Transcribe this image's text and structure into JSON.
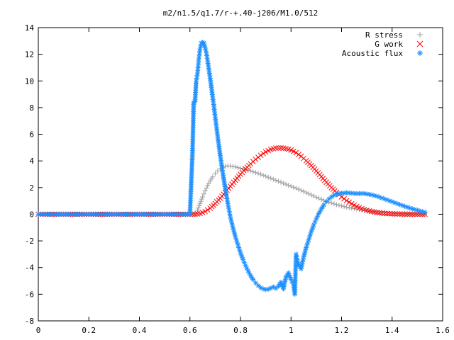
{
  "chart_data": {
    "type": "scatter",
    "title": "m2/n1.5/q1.7/r-+.40-j206/M1.0/512",
    "xlabel": "",
    "ylabel": "",
    "xlim": [
      0,
      1.6
    ],
    "ylim": [
      -8,
      14
    ],
    "x_ticks": [
      "0",
      "0.2",
      "0.4",
      "0.6",
      "0.8",
      "1",
      "1.2",
      "1.4",
      "1.6"
    ],
    "y_ticks": [
      "-8",
      "-6",
      "-4",
      "-2",
      "0",
      "2",
      "4",
      "6",
      "8",
      "10",
      "12",
      "14"
    ],
    "grid": false,
    "legend_position": "top-right",
    "series": [
      {
        "name": "R stress",
        "marker": "plus",
        "color": "#a0a0a0",
        "points": [
          [
            0.0,
            0
          ],
          [
            0.1,
            0
          ],
          [
            0.2,
            0
          ],
          [
            0.3,
            0
          ],
          [
            0.4,
            0
          ],
          [
            0.5,
            0
          ],
          [
            0.6,
            0
          ],
          [
            0.62,
            0.05
          ],
          [
            0.63,
            0.3
          ],
          [
            0.64,
            0.8
          ],
          [
            0.65,
            1.3
          ],
          [
            0.66,
            1.75
          ],
          [
            0.67,
            2.15
          ],
          [
            0.68,
            2.5
          ],
          [
            0.69,
            2.8
          ],
          [
            0.7,
            3.05
          ],
          [
            0.71,
            3.25
          ],
          [
            0.72,
            3.4
          ],
          [
            0.73,
            3.52
          ],
          [
            0.74,
            3.6
          ],
          [
            0.75,
            3.63
          ],
          [
            0.76,
            3.62
          ],
          [
            0.78,
            3.55
          ],
          [
            0.8,
            3.45
          ],
          [
            0.82,
            3.35
          ],
          [
            0.84,
            3.25
          ],
          [
            0.86,
            3.12
          ],
          [
            0.88,
            3.0
          ],
          [
            0.9,
            2.85
          ],
          [
            0.92,
            2.7
          ],
          [
            0.94,
            2.55
          ],
          [
            0.96,
            2.4
          ],
          [
            0.98,
            2.25
          ],
          [
            1.0,
            2.1
          ],
          [
            1.02,
            1.95
          ],
          [
            1.04,
            1.8
          ],
          [
            1.06,
            1.62
          ],
          [
            1.08,
            1.45
          ],
          [
            1.1,
            1.28
          ],
          [
            1.12,
            1.12
          ],
          [
            1.14,
            0.97
          ],
          [
            1.16,
            0.84
          ],
          [
            1.18,
            0.72
          ],
          [
            1.2,
            0.62
          ],
          [
            1.22,
            0.53
          ],
          [
            1.24,
            0.45
          ],
          [
            1.26,
            0.38
          ],
          [
            1.28,
            0.32
          ],
          [
            1.3,
            0.26
          ],
          [
            1.32,
            0.21
          ],
          [
            1.34,
            0.17
          ],
          [
            1.36,
            0.13
          ],
          [
            1.38,
            0.1
          ],
          [
            1.4,
            0.07
          ],
          [
            1.42,
            0.05
          ],
          [
            1.44,
            0.03
          ],
          [
            1.46,
            0.02
          ],
          [
            1.48,
            0.01
          ],
          [
            1.5,
            0.005
          ],
          [
            1.53,
            0.0
          ]
        ]
      },
      {
        "name": "G work",
        "marker": "cross",
        "color": "#ff0000",
        "points": [
          [
            0.0,
            0
          ],
          [
            0.1,
            0
          ],
          [
            0.2,
            0
          ],
          [
            0.3,
            0
          ],
          [
            0.4,
            0
          ],
          [
            0.5,
            0
          ],
          [
            0.6,
            0
          ],
          [
            0.62,
            0.0
          ],
          [
            0.64,
            0.05
          ],
          [
            0.66,
            0.2
          ],
          [
            0.68,
            0.45
          ],
          [
            0.7,
            0.8
          ],
          [
            0.72,
            1.2
          ],
          [
            0.74,
            1.65
          ],
          [
            0.76,
            2.1
          ],
          [
            0.78,
            2.55
          ],
          [
            0.8,
            3.0
          ],
          [
            0.82,
            3.4
          ],
          [
            0.84,
            3.78
          ],
          [
            0.86,
            4.12
          ],
          [
            0.88,
            4.42
          ],
          [
            0.9,
            4.68
          ],
          [
            0.92,
            4.86
          ],
          [
            0.94,
            4.96
          ],
          [
            0.96,
            4.98
          ],
          [
            0.98,
            4.93
          ],
          [
            1.0,
            4.82
          ],
          [
            1.02,
            4.62
          ],
          [
            1.04,
            4.35
          ],
          [
            1.06,
            4.02
          ],
          [
            1.08,
            3.65
          ],
          [
            1.1,
            3.25
          ],
          [
            1.12,
            2.82
          ],
          [
            1.14,
            2.4
          ],
          [
            1.16,
            2.0
          ],
          [
            1.18,
            1.64
          ],
          [
            1.2,
            1.3
          ],
          [
            1.22,
            1.02
          ],
          [
            1.24,
            0.78
          ],
          [
            1.26,
            0.58
          ],
          [
            1.28,
            0.42
          ],
          [
            1.3,
            0.3
          ],
          [
            1.32,
            0.2
          ],
          [
            1.34,
            0.13
          ],
          [
            1.36,
            0.08
          ],
          [
            1.38,
            0.05
          ],
          [
            1.4,
            0.03
          ],
          [
            1.42,
            0.02
          ],
          [
            1.44,
            0.01
          ],
          [
            1.46,
            0.005
          ],
          [
            1.48,
            0.0
          ],
          [
            1.5,
            0.0
          ],
          [
            1.53,
            0.0
          ]
        ]
      },
      {
        "name": "Acoustic flux",
        "marker": "star",
        "color": "#1e90ff",
        "points": [
          [
            0.0,
            0
          ],
          [
            0.05,
            0
          ],
          [
            0.1,
            0
          ],
          [
            0.15,
            0
          ],
          [
            0.2,
            0
          ],
          [
            0.25,
            0
          ],
          [
            0.3,
            0
          ],
          [
            0.35,
            0
          ],
          [
            0.4,
            0
          ],
          [
            0.45,
            0
          ],
          [
            0.5,
            0
          ],
          [
            0.55,
            0
          ],
          [
            0.6,
            0
          ],
          [
            0.61,
            4.6
          ],
          [
            0.615,
            8.4
          ],
          [
            0.62,
            8.45
          ],
          [
            0.625,
            10.0
          ],
          [
            0.63,
            10.6
          ],
          [
            0.635,
            11.6
          ],
          [
            0.64,
            12.4
          ],
          [
            0.645,
            12.85
          ],
          [
            0.65,
            12.9
          ],
          [
            0.655,
            12.85
          ],
          [
            0.66,
            12.5
          ],
          [
            0.665,
            12.1
          ],
          [
            0.67,
            11.5
          ],
          [
            0.68,
            10.2
          ],
          [
            0.69,
            8.8
          ],
          [
            0.7,
            7.3
          ],
          [
            0.71,
            5.8
          ],
          [
            0.72,
            4.4
          ],
          [
            0.73,
            3.1
          ],
          [
            0.74,
            1.9
          ],
          [
            0.75,
            0.8
          ],
          [
            0.76,
            -0.2
          ],
          [
            0.77,
            -1.0
          ],
          [
            0.78,
            -1.7
          ],
          [
            0.79,
            -2.3
          ],
          [
            0.8,
            -2.9
          ],
          [
            0.81,
            -3.4
          ],
          [
            0.82,
            -3.85
          ],
          [
            0.83,
            -4.25
          ],
          [
            0.84,
            -4.6
          ],
          [
            0.85,
            -4.9
          ],
          [
            0.86,
            -5.15
          ],
          [
            0.87,
            -5.35
          ],
          [
            0.88,
            -5.5
          ],
          [
            0.89,
            -5.6
          ],
          [
            0.9,
            -5.65
          ],
          [
            0.91,
            -5.62
          ],
          [
            0.92,
            -5.55
          ],
          [
            0.93,
            -5.45
          ],
          [
            0.94,
            -5.55
          ],
          [
            0.95,
            -5.4
          ],
          [
            0.96,
            -5.1
          ],
          [
            0.97,
            -5.6
          ],
          [
            0.98,
            -4.7
          ],
          [
            0.99,
            -4.4
          ],
          [
            1.0,
            -4.9
          ],
          [
            1.01,
            -5.3
          ],
          [
            1.015,
            -6.0
          ],
          [
            1.02,
            -3.0
          ],
          [
            1.03,
            -3.8
          ],
          [
            1.04,
            -4.1
          ],
          [
            1.05,
            -3.2
          ],
          [
            1.06,
            -2.5
          ],
          [
            1.07,
            -1.9
          ],
          [
            1.08,
            -1.3
          ],
          [
            1.09,
            -0.8
          ],
          [
            1.1,
            -0.35
          ],
          [
            1.11,
            0.05
          ],
          [
            1.12,
            0.4
          ],
          [
            1.13,
            0.7
          ],
          [
            1.14,
            0.95
          ],
          [
            1.15,
            1.15
          ],
          [
            1.16,
            1.3
          ],
          [
            1.17,
            1.42
          ],
          [
            1.18,
            1.5
          ],
          [
            1.19,
            1.55
          ],
          [
            1.2,
            1.58
          ],
          [
            1.21,
            1.6
          ],
          [
            1.22,
            1.61
          ],
          [
            1.23,
            1.6
          ],
          [
            1.24,
            1.58
          ],
          [
            1.25,
            1.56
          ],
          [
            1.26,
            1.55
          ],
          [
            1.27,
            1.55
          ],
          [
            1.28,
            1.56
          ],
          [
            1.29,
            1.55
          ],
          [
            1.3,
            1.52
          ],
          [
            1.32,
            1.45
          ],
          [
            1.34,
            1.35
          ],
          [
            1.36,
            1.22
          ],
          [
            1.38,
            1.08
          ],
          [
            1.4,
            0.94
          ],
          [
            1.42,
            0.8
          ],
          [
            1.44,
            0.66
          ],
          [
            1.46,
            0.53
          ],
          [
            1.48,
            0.41
          ],
          [
            1.5,
            0.3
          ],
          [
            1.52,
            0.2
          ],
          [
            1.53,
            0.15
          ]
        ]
      }
    ]
  }
}
